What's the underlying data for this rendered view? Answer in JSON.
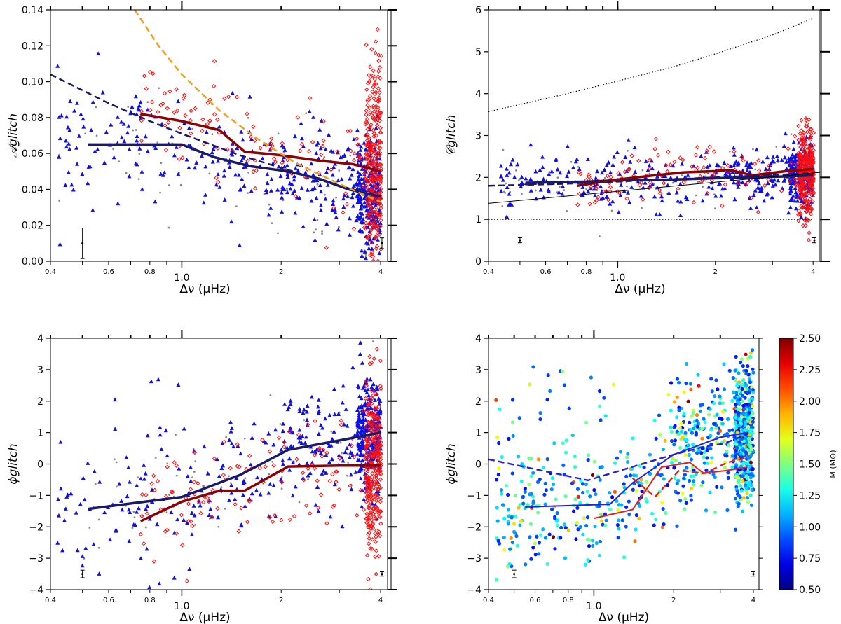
{
  "figure": {
    "chart_data": [
      {
        "type": "scatter",
        "xlabel": "Δν (μHz)",
        "ylabel": "𝒜glitch",
        "xscale": "log",
        "xlim": [
          0.4,
          4.2
        ],
        "ylim": [
          0.0,
          0.14
        ],
        "x_tick_labels": [
          "0.4",
          "0.6",
          "0.8",
          "1.0",
          "2",
          "4"
        ],
        "y_tick_labels": [
          "0.00",
          "0.02",
          "0.04",
          "0.06",
          "0.08",
          "0.10",
          "0.12",
          "0.14"
        ],
        "lines": [
          {
            "color": "#1a1a66",
            "style": "solid",
            "x": [
              0.52,
              0.75,
              1.0,
              1.25,
              1.6,
              2.1,
              2.6,
              3.2,
              4.0
            ],
            "y": [
              0.065,
              0.065,
              0.065,
              0.058,
              0.053,
              0.05,
              0.046,
              0.04,
              0.036
            ]
          },
          {
            "color": "#8b0000",
            "style": "solid",
            "x": [
              0.75,
              1.0,
              1.3,
              1.55,
              2.0,
              2.6,
              3.3,
              4.0
            ],
            "y": [
              0.082,
              0.078,
              0.073,
              0.061,
              0.059,
              0.056,
              0.054,
              0.05
            ]
          },
          {
            "color": "#1a1a66",
            "style": "dashed",
            "x": [
              0.4,
              0.6,
              0.8,
              1.0,
              1.5,
              2.0,
              3.0,
              4.0
            ],
            "y": [
              0.104,
              0.088,
              0.078,
              0.071,
              0.059,
              0.052,
              0.042,
              0.036
            ]
          },
          {
            "color": "#f0a020",
            "style": "dashed",
            "x": [
              0.72,
              0.85,
              1.0,
              1.3,
              1.7,
              2.2,
              3.0,
              4.0
            ],
            "y": [
              0.14,
              0.12,
              0.104,
              0.084,
              0.068,
              0.055,
              0.043,
              0.033
            ]
          }
        ],
        "error_bars": [
          {
            "x": 0.5,
            "y": 0.01,
            "err": 0.0085
          },
          {
            "x": 4.3,
            "y": 0.01,
            "err": 0.003
          }
        ]
      },
      {
        "type": "scatter",
        "xlabel": "Δν (μHz)",
        "ylabel": "𝒞glitch",
        "xscale": "log",
        "xlim": [
          0.4,
          4.2
        ],
        "ylim": [
          0,
          6
        ],
        "x_tick_labels": [
          "0.4",
          "0.6",
          "0.8",
          "1.0",
          "2",
          "4"
        ],
        "y_tick_labels": [
          "0",
          "1",
          "2",
          "3",
          "4",
          "5",
          "6"
        ],
        "lines": [
          {
            "color": "#1a1a66",
            "style": "solid",
            "x": [
              0.52,
              0.8,
              1.0,
              1.5,
              2.0,
              2.6,
              3.2,
              4.0
            ],
            "y": [
              1.87,
              1.9,
              1.93,
              1.95,
              1.98,
              2.0,
              2.02,
              2.05
            ]
          },
          {
            "color": "#8b0000",
            "style": "solid",
            "x": [
              0.75,
              1.0,
              1.3,
              1.6,
              2.0,
              2.2,
              2.6,
              3.3,
              4.0
            ],
            "y": [
              1.8,
              1.95,
              2.05,
              2.12,
              2.15,
              2.18,
              2.05,
              2.15,
              2.2
            ]
          },
          {
            "color": "#1a1a66",
            "style": "dashed",
            "x": [
              0.4,
              0.7,
              1.0,
              2.0,
              4.0
            ],
            "y": [
              1.8,
              1.85,
              1.9,
              2.0,
              2.1
            ]
          },
          {
            "color": "#000000",
            "style": "thin",
            "x": [
              0.4,
              4.2
            ],
            "y": [
              1.38,
              2.12
            ]
          },
          {
            "color": "#000000",
            "style": "dotted",
            "x": [
              0.4,
              0.7,
              1.0,
              1.5,
              2.0,
              3.0,
              4.0
            ],
            "y": [
              3.57,
              4.0,
              4.3,
              4.65,
              4.95,
              5.4,
              5.8
            ]
          },
          {
            "color": "#000000",
            "style": "dotted",
            "x": [
              0.4,
              4.0
            ],
            "y": [
              1.0,
              1.0
            ]
          }
        ],
        "error_bars": [
          {
            "x": 0.5,
            "y": 0.5,
            "err": 0.06
          },
          {
            "x": 4.4,
            "y": 0.5,
            "err": 0.06
          }
        ]
      },
      {
        "type": "scatter",
        "xlabel": "Δν (μHz)",
        "ylabel": "ϕglitch",
        "xscale": "log",
        "xlim": [
          0.4,
          4.2
        ],
        "ylim": [
          -4,
          4
        ],
        "x_tick_labels": [
          "0.4",
          "0.6",
          "0.8",
          "1.0",
          "2",
          "4"
        ],
        "y_tick_labels": [
          "−4",
          "−3",
          "−2",
          "−1",
          "0",
          "1",
          "2",
          "3",
          "4"
        ],
        "lines": [
          {
            "color": "#1a1a66",
            "style": "solid",
            "x": [
              0.52,
              1.0,
              1.5,
              2.1,
              3.0,
              4.0
            ],
            "y": [
              -1.43,
              -1.05,
              -0.35,
              0.45,
              0.75,
              1.0
            ]
          },
          {
            "color": "#8b0000",
            "style": "solid",
            "x": [
              0.75,
              1.0,
              1.3,
              1.55,
              2.1,
              3.0,
              4.0
            ],
            "y": [
              -1.82,
              -1.2,
              -0.85,
              -0.85,
              -0.08,
              -0.05,
              -0.05
            ]
          }
        ],
        "error_bars": [
          {
            "x": 0.5,
            "y": -3.5,
            "err": 0.12
          },
          {
            "x": 4.3,
            "y": -3.5,
            "err": 0.07
          }
        ]
      },
      {
        "type": "scatter",
        "xlabel": "Δν (μHz)",
        "ylabel": "ϕglitch",
        "xscale": "log",
        "xlim": [
          0.4,
          4.2
        ],
        "ylim": [
          -4,
          4
        ],
        "x_tick_labels": [
          "0.4",
          "0.6",
          "0.8",
          "1.0",
          "2",
          "4"
        ],
        "y_tick_labels": [
          "−4",
          "−3",
          "−2",
          "−1",
          "0",
          "1",
          "2",
          "3",
          "4"
        ],
        "colorbar": {
          "label": "M (M⊙)",
          "range": [
            0.5,
            2.5
          ],
          "colormap": "jet",
          "tick_labels": [
            "0.50",
            "0.75",
            "1.00",
            "1.25",
            "1.50",
            "1.75",
            "2.00",
            "2.25",
            "2.50"
          ]
        },
        "lines": [
          {
            "color": "#2222dd",
            "style": "solid",
            "x": [
              0.55,
              1.15,
              1.4,
              2.0,
              3.0,
              3.8
            ],
            "y": [
              -1.37,
              -1.28,
              -0.6,
              0.3,
              0.85,
              1.0
            ]
          },
          {
            "color": "#dd2222",
            "style": "solid",
            "x": [
              1.0,
              1.4,
              1.8,
              2.3,
              2.6,
              3.2,
              3.8
            ],
            "y": [
              -1.73,
              -1.45,
              -0.1,
              0.05,
              -0.3,
              -0.2,
              -0.1
            ]
          },
          {
            "color": "#2222dd",
            "style": "dashed",
            "x": [
              0.4,
              0.95,
              1.45,
              2.0,
              2.6,
              3.1,
              3.8
            ],
            "y": [
              0.15,
              -0.52,
              -0.05,
              0.3,
              0.55,
              0.65,
              0.95
            ]
          },
          {
            "color": "#dd2222",
            "style": "dashed",
            "x": [
              1.4,
              1.7,
              2.1,
              2.6,
              3.2,
              3.8
            ],
            "y": [
              -0.45,
              -1.05,
              -0.2,
              -0.3,
              0.05,
              0.2
            ]
          }
        ],
        "error_bars": [
          {
            "x": 0.5,
            "y": -3.5,
            "err": 0.12
          },
          {
            "x": 4.3,
            "y": -3.5,
            "err": 0.07
          }
        ]
      }
    ]
  }
}
